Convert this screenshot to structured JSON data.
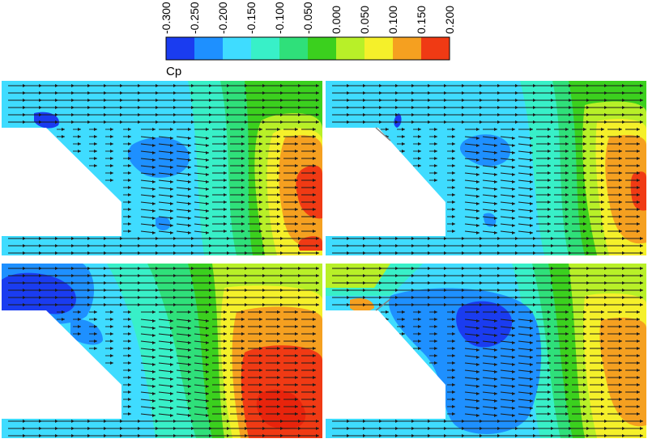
{
  "colorbar": {
    "title": "Cp",
    "tick_labels": [
      "-0.300",
      "-0.250",
      "-0.200",
      "-0.150",
      "-0.100",
      "-0.050",
      "0.000",
      "0.050",
      "0.100",
      "0.150",
      "0.200"
    ],
    "colors": [
      "#1a3cf0",
      "#1e90ff",
      "#3fdcff",
      "#38f0c8",
      "#2fe07a",
      "#3bd01e",
      "#b8f028",
      "#f5f02a",
      "#f5a020",
      "#f03a14"
    ]
  },
  "panels": [
    {
      "id": "top-left",
      "step_shape": "plain",
      "blobs": [
        {
          "level": 1,
          "shape": "blob-a"
        },
        {
          "level": 2,
          "shape": "blob-b"
        },
        {
          "level": 3,
          "shape": "blob-c"
        },
        {
          "level": 4,
          "shape": "blob-d"
        }
      ]
    },
    {
      "id": "top-right",
      "step_shape": "flap",
      "blobs": []
    },
    {
      "id": "bottom-left",
      "step_shape": "plain",
      "blobs": []
    },
    {
      "id": "bottom-right",
      "step_shape": "flap",
      "blobs": []
    }
  ]
}
